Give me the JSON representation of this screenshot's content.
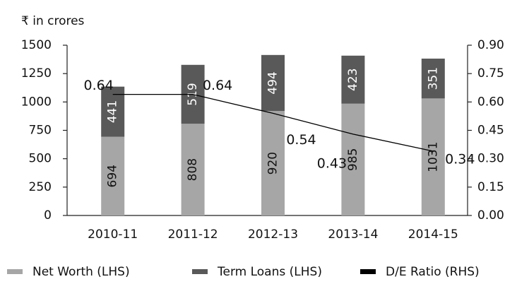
{
  "chart_data": {
    "type": "bar-line",
    "y_axis_label": "₹ in crores",
    "categories": [
      "2010-11",
      "2011-12",
      "2012-13",
      "2013-14",
      "2014-15"
    ],
    "series": [
      {
        "name": "Net Worth (LHS)",
        "color": "#a6a6a6",
        "values": [
          694,
          808,
          920,
          985,
          1031
        ]
      },
      {
        "name": "Term Loans (LHS)",
        "color": "#595959",
        "values": [
          441,
          519,
          494,
          423,
          351
        ]
      },
      {
        "name": "D/E Ratio (RHS)",
        "color": "#000000",
        "axis": "y2",
        "values": [
          0.64,
          0.64,
          0.54,
          0.43,
          0.34
        ]
      }
    ],
    "ylim": [
      0,
      1500
    ],
    "yticks": [
      0,
      250,
      500,
      750,
      1000,
      1250,
      1500
    ],
    "y2lim": [
      0,
      0.9
    ],
    "y2ticks": [
      {
        "value": 0,
        "label": "0.00"
      },
      0.15,
      {
        "value": 0.3,
        "label": "0.30"
      },
      0.45,
      {
        "value": 0.6,
        "label": "0.60"
      },
      0.75,
      {
        "value": 0.9,
        "label": "0.90"
      }
    ]
  }
}
